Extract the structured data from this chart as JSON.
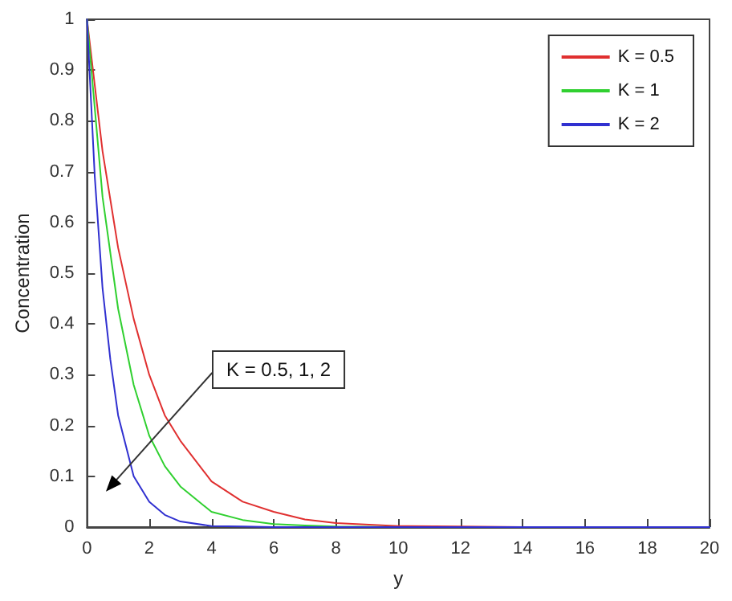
{
  "chart_data": {
    "type": "line",
    "xlabel": "y",
    "ylabel": "Concentration",
    "xlim": [
      0,
      20
    ],
    "xticks": [
      0,
      2,
      4,
      6,
      8,
      10,
      12,
      14,
      16,
      18,
      20
    ],
    "ylim": [
      0,
      1
    ],
    "yticks": [
      0,
      0.1,
      0.2,
      0.3,
      0.4,
      0.5,
      0.6,
      0.7,
      0.8,
      0.9,
      1
    ],
    "grid": false,
    "legend": "top right",
    "line_style": "solid",
    "annotations": [
      "K = 0.5, 1, 2"
    ],
    "series": [
      {
        "name": "K = 0.5",
        "color": "#e03030",
        "x": [
          0,
          0.5,
          1,
          1.5,
          2,
          2.5,
          3,
          4,
          5,
          6,
          7,
          8,
          10,
          12,
          14,
          20
        ],
        "values": [
          1,
          0.74,
          0.55,
          0.41,
          0.3,
          0.22,
          0.17,
          0.09,
          0.05,
          0.03,
          0.015,
          0.008,
          0.002,
          0.001,
          0,
          0
        ]
      },
      {
        "name": "K = 1",
        "color": "#30d030",
        "x": [
          0,
          0.5,
          1,
          1.5,
          2,
          2.5,
          3,
          4,
          5,
          6,
          7,
          8,
          10,
          20
        ],
        "values": [
          1,
          0.65,
          0.43,
          0.28,
          0.18,
          0.12,
          0.08,
          0.03,
          0.014,
          0.006,
          0.003,
          0.001,
          0,
          0
        ]
      },
      {
        "name": "K = 2",
        "color": "#3030d0",
        "x": [
          0,
          0.25,
          0.5,
          0.75,
          1,
          1.5,
          2,
          2.5,
          3,
          4,
          5,
          6,
          20
        ],
        "values": [
          1,
          0.69,
          0.47,
          0.33,
          0.22,
          0.1,
          0.05,
          0.024,
          0.011,
          0.002,
          0.001,
          0,
          0
        ]
      }
    ]
  }
}
